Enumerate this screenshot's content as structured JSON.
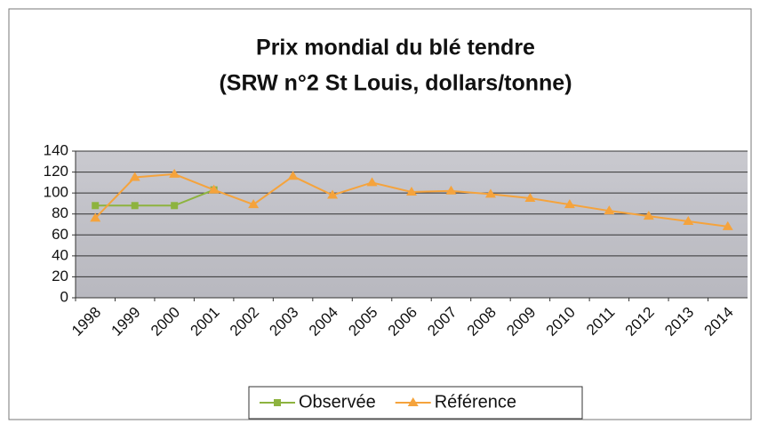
{
  "chart_data": {
    "type": "line",
    "title": "Prix mondial du blé tendre",
    "subtitle": "(SRW n°2 St Louis, dollars/tonne)",
    "categories": [
      "1998",
      "1999",
      "2000",
      "2001",
      "2002",
      "2003",
      "2004",
      "2005",
      "2006",
      "2007",
      "2008",
      "2009",
      "2010",
      "2011",
      "2012",
      "2013",
      "2014"
    ],
    "series": [
      {
        "name": "Observée",
        "color": "#8db33f",
        "marker": "square",
        "values": [
          88,
          88,
          88,
          103,
          null,
          null,
          null,
          null,
          null,
          null,
          null,
          null,
          null,
          null,
          null,
          null,
          null
        ]
      },
      {
        "name": "Référence",
        "color": "#f5a33c",
        "marker": "triangle",
        "values": [
          76,
          115,
          118,
          103,
          89,
          116,
          98,
          110,
          101,
          102,
          99,
          95,
          89,
          83,
          78,
          73,
          68
        ]
      }
    ],
    "ylim": [
      0,
      140
    ],
    "yticks": [
      0,
      20,
      40,
      60,
      80,
      100,
      120,
      140
    ],
    "grid": true,
    "legend": "bottom"
  }
}
